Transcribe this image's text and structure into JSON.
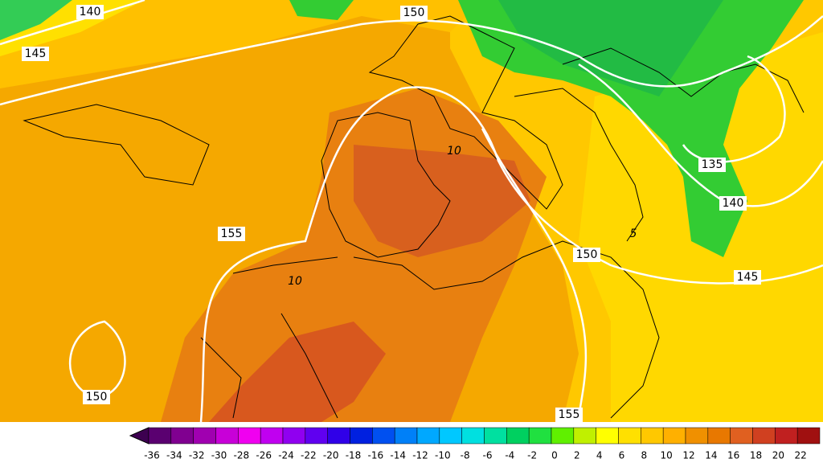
{
  "contour_labels": [
    140,
    150,
    145,
    155,
    135,
    140,
    150,
    145,
    150,
    155,
    10,
    10,
    5
  ],
  "colorbar": {
    "labels": [
      "-36",
      "-34",
      "-32",
      "-30",
      "-28",
      "-26",
      "-24",
      "-22",
      "-20",
      "-18",
      "-16",
      "-14",
      "-12",
      "-10",
      "-8",
      "-6",
      "-4",
      "-2",
      "0",
      "2",
      "4",
      "6",
      "8",
      "10",
      "12",
      "14",
      "16",
      "18",
      "20",
      "22"
    ],
    "colors": [
      "#5a0070",
      "#800090",
      "#a000b0",
      "#c800d8",
      "#f000f0",
      "#c000f0",
      "#9000f0",
      "#6000f0",
      "#3000e8",
      "#0020e0",
      "#0050f0",
      "#0080f8",
      "#00a8ff",
      "#00c8ff",
      "#00e0e0",
      "#00e0a0",
      "#00d060",
      "#20e040",
      "#60f000",
      "#c0f000",
      "#ffff00",
      "#ffe000",
      "#ffc800",
      "#ffb000",
      "#f09000",
      "#e87800",
      "#e06020",
      "#d04020",
      "#c02020",
      "#a01010"
    ],
    "below_color": "#3d0050"
  }
}
